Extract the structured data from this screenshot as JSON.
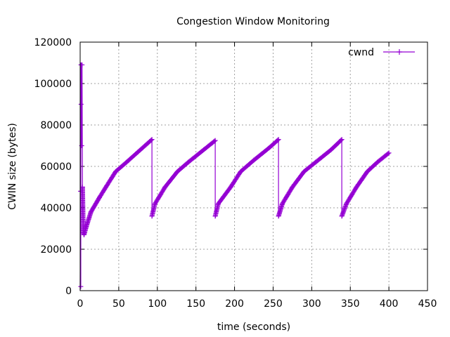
{
  "chart_data": {
    "type": "line",
    "title": "Congestion Window Monitoring",
    "xlabel": "time (seconds)",
    "ylabel": "CWIN size (bytes)",
    "xlim": [
      0,
      450
    ],
    "ylim": [
      0,
      120000
    ],
    "x_ticks": [
      0,
      50,
      100,
      150,
      200,
      250,
      300,
      350,
      400,
      450
    ],
    "y_ticks": [
      0,
      20000,
      40000,
      60000,
      80000,
      100000,
      120000
    ],
    "grid": true,
    "legend_position": "top-right",
    "series": [
      {
        "name": "cwnd",
        "color": "#9400d3",
        "marker": "plus",
        "x": [
          0,
          0.5,
          0.8,
          1.0,
          1.2,
          1.5,
          2.0,
          2.5,
          3,
          4,
          5,
          8,
          14,
          25,
          35,
          46,
          60,
          75,
          93,
          93,
          97,
          110,
          126,
          140,
          160,
          175,
          175,
          179,
          195,
          208,
          225,
          245,
          257,
          257,
          262,
          275,
          290,
          305,
          325,
          339,
          339,
          345,
          358,
          372,
          385,
          400
        ],
        "y": [
          0,
          48000,
          2000,
          109000,
          90000,
          109000,
          70000,
          109000,
          50000,
          29000,
          27000,
          31000,
          38000,
          45000,
          51000,
          57500,
          62000,
          67000,
          73000,
          36000,
          42000,
          50000,
          57500,
          62000,
          68000,
          72500,
          36000,
          42000,
          50000,
          57500,
          63000,
          69000,
          73000,
          36000,
          42000,
          50000,
          57500,
          62000,
          68000,
          73000,
          36000,
          42000,
          50000,
          57500,
          62000,
          66500
        ]
      }
    ]
  }
}
